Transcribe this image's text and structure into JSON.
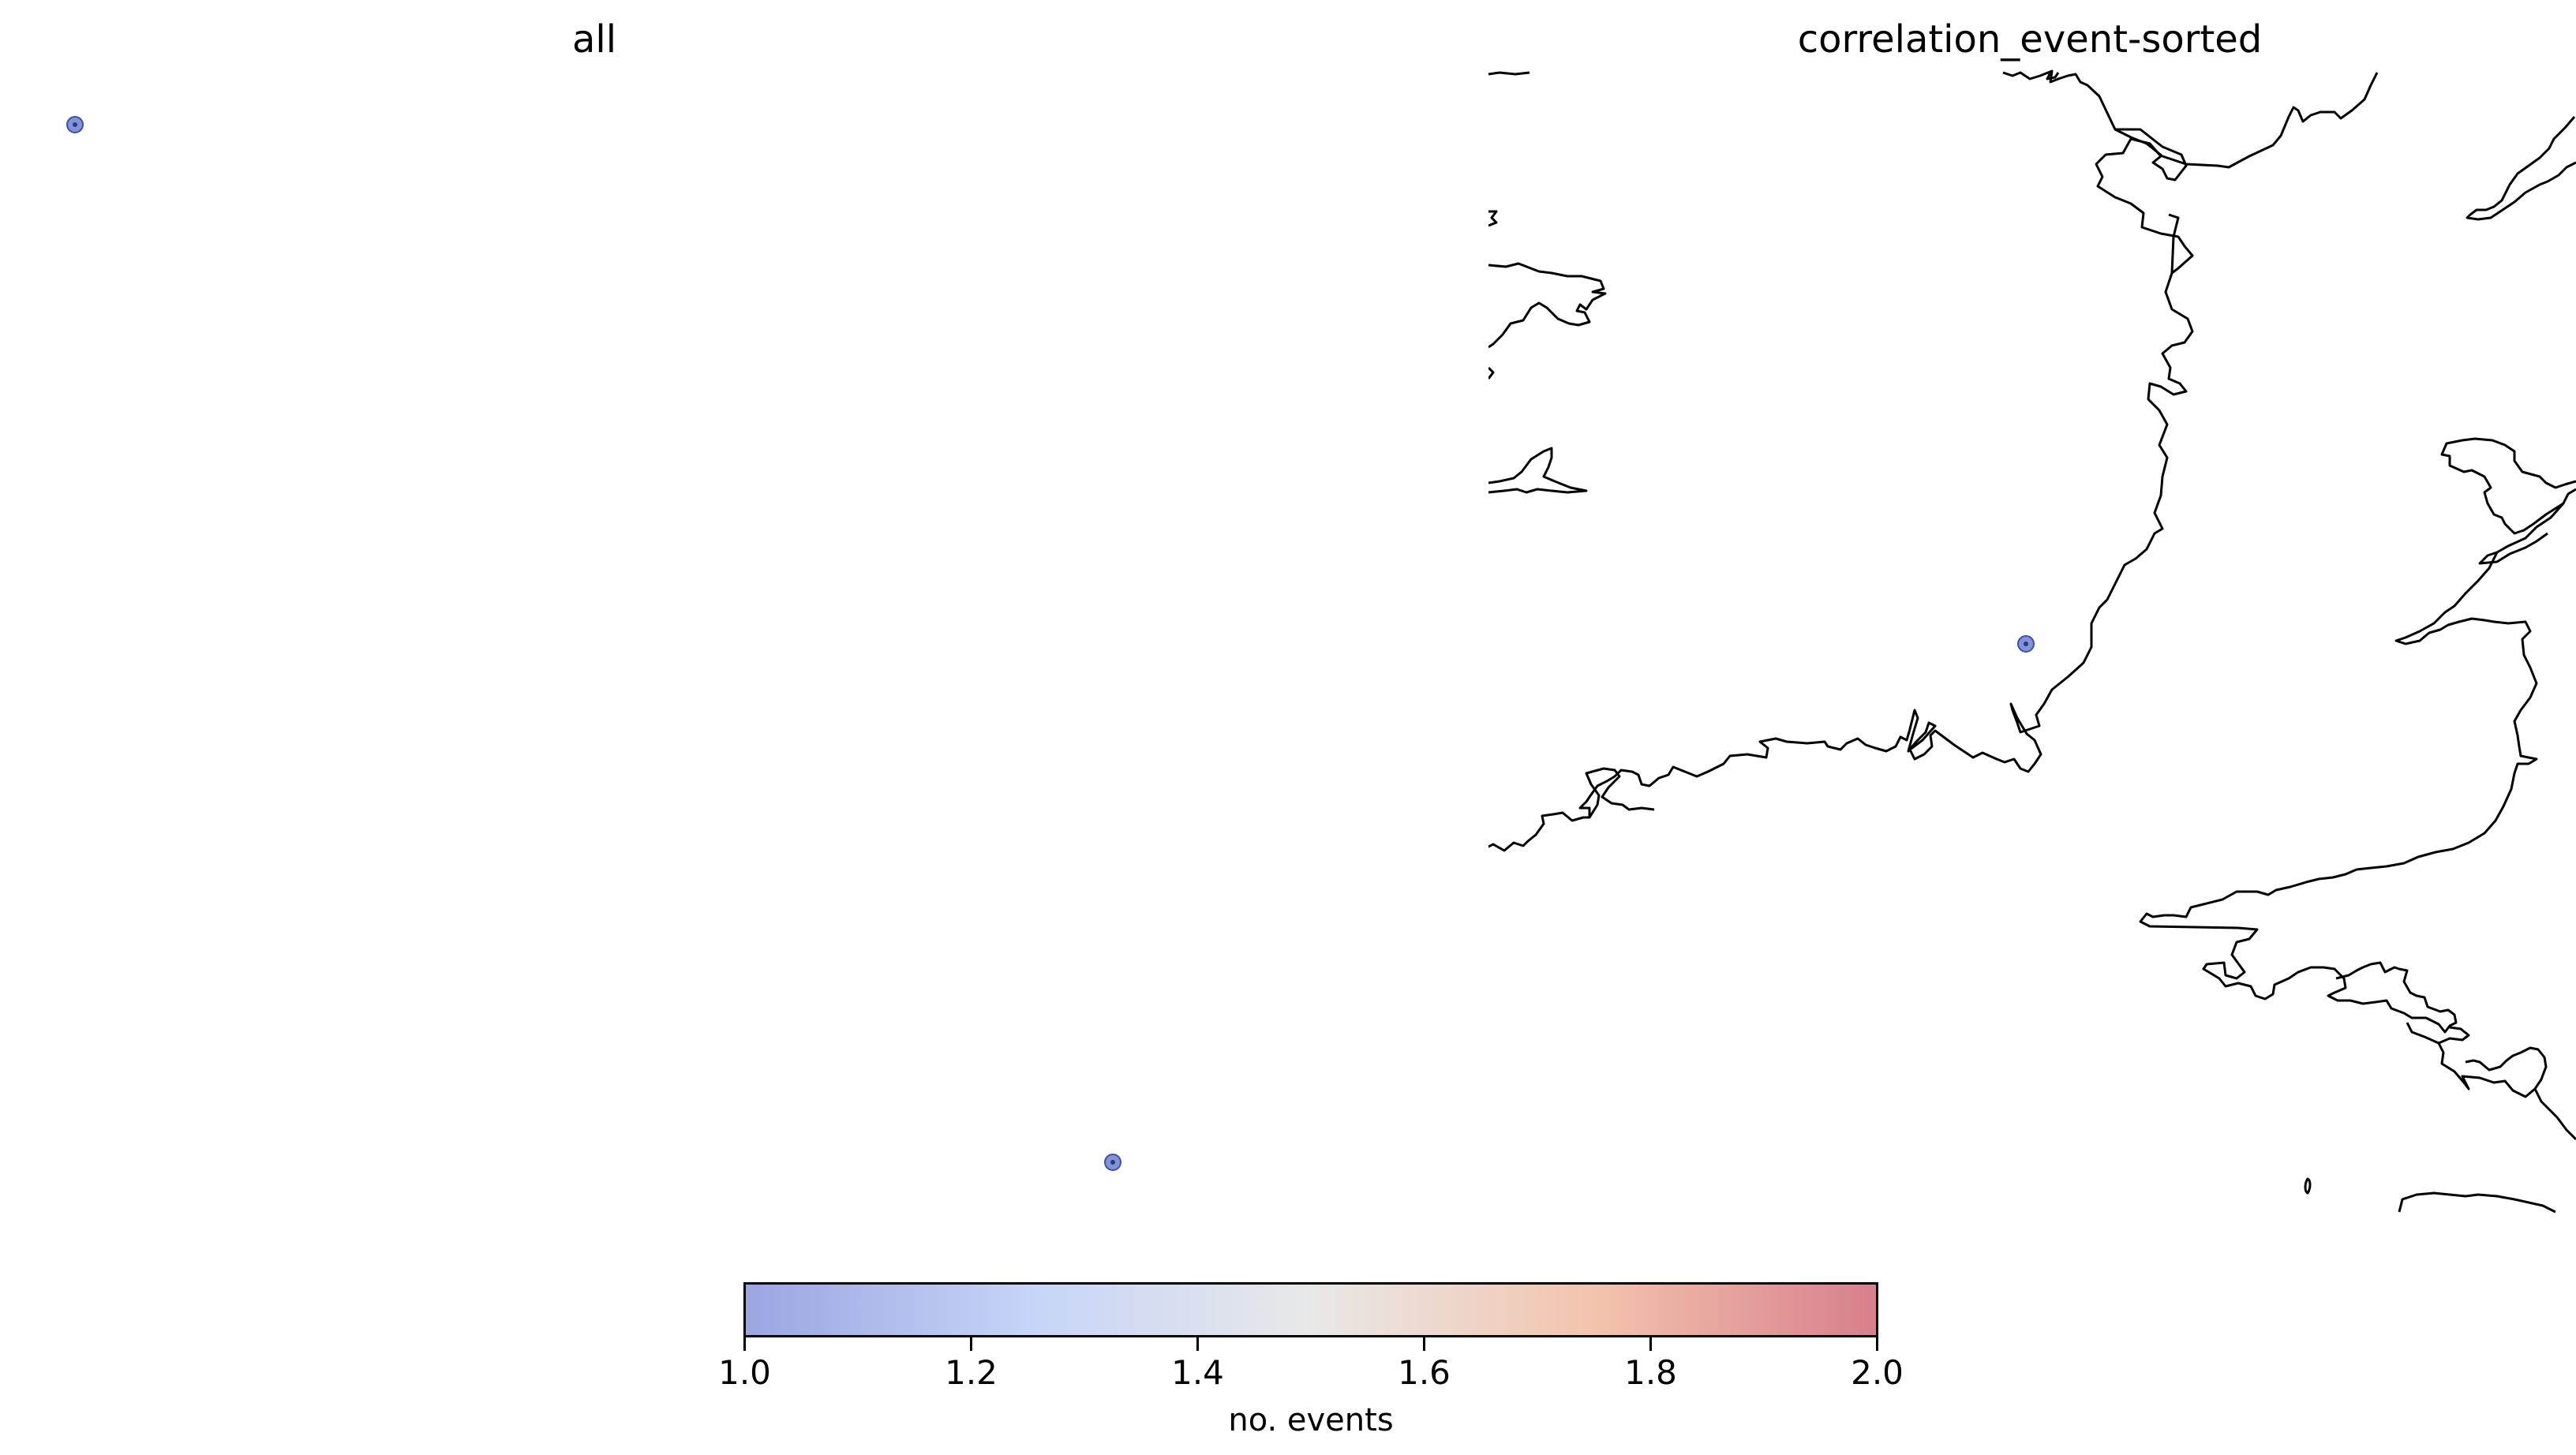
{
  "panels": [
    {
      "title": "all",
      "points": [
        {
          "value": 1
        },
        {
          "value": 1
        }
      ]
    },
    {
      "title": "correlation_event-sorted",
      "points": [
        {
          "value": 1
        }
      ]
    }
  ],
  "colorbar": {
    "label": "no. events",
    "range": [
      1.0,
      2.0
    ],
    "colormap": "coolwarm",
    "ticks": [
      "1.0",
      "1.2",
      "1.4",
      "1.6",
      "1.8",
      "2.0"
    ],
    "colors": {
      "low": "#9aa6e0",
      "mid": "#e8e8e8",
      "high": "#d77f8c",
      "point_fill": "#6e7fcf",
      "point_edge": "#3a4fb0"
    }
  }
}
